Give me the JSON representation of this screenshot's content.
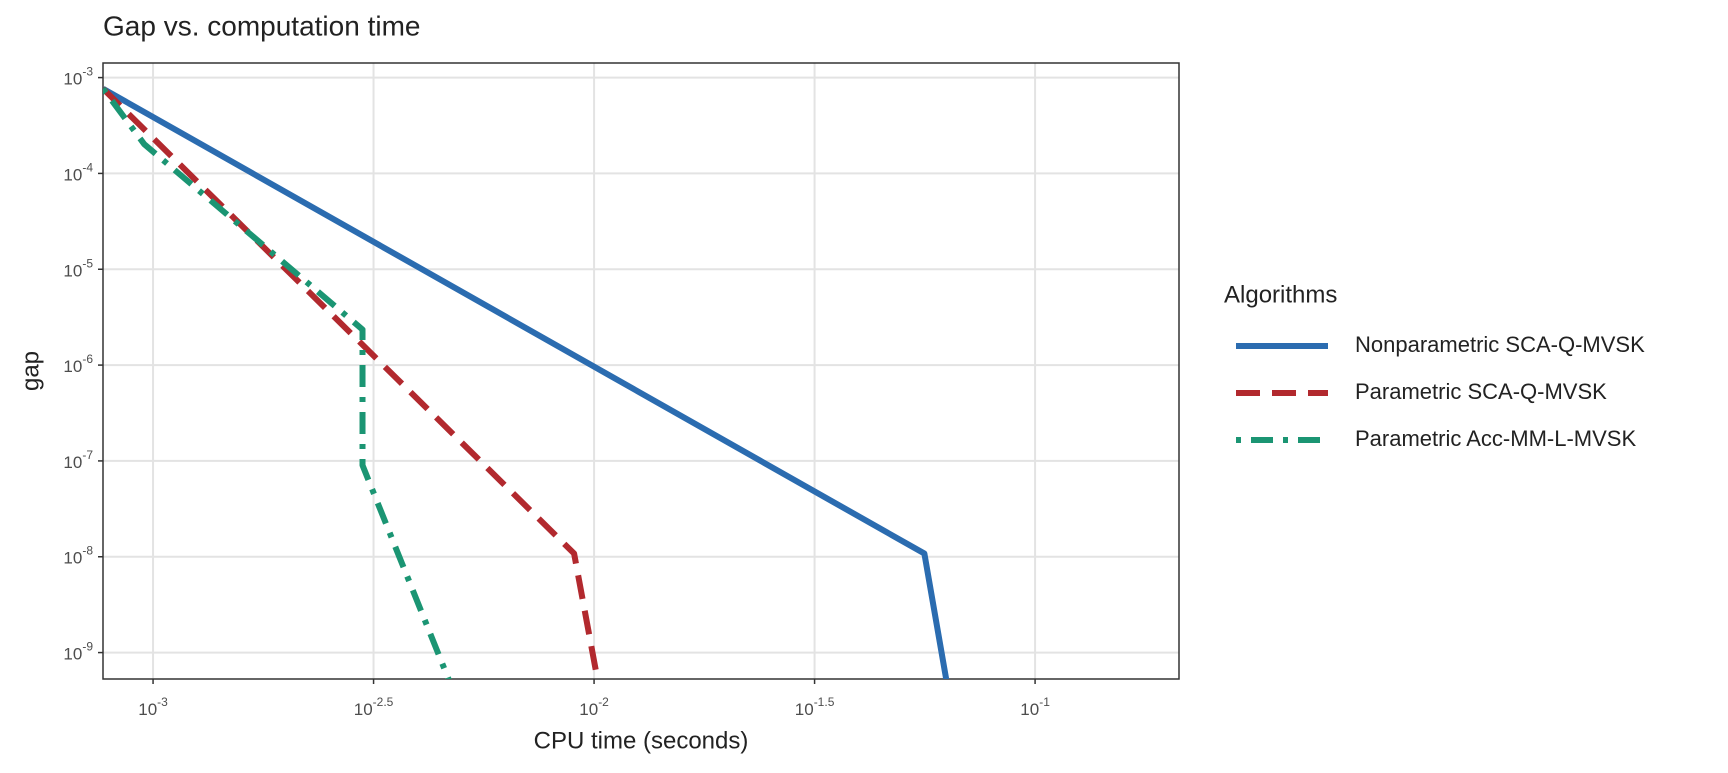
{
  "chart_data": {
    "type": "line",
    "title": "Gap vs. computation time",
    "x_label": "CPU time (seconds)",
    "y_label": "gap",
    "xscale": "log",
    "yscale": "log",
    "grid": true,
    "xlim": [
      0.00077,
      0.212
    ],
    "ylim": [
      5.3e-10,
      0.00142
    ],
    "xticks": [
      {
        "value": 0.001,
        "label": "10^-3"
      },
      {
        "value": 0.0031623,
        "label": "10^-2.5"
      },
      {
        "value": 0.01,
        "label": "10^-2"
      },
      {
        "value": 0.031623,
        "label": "10^-1.5"
      },
      {
        "value": 0.1,
        "label": "10^-1"
      }
    ],
    "yticks": [
      {
        "value": 0.001,
        "label": "10^-3"
      },
      {
        "value": 0.0001,
        "label": "10^-4"
      },
      {
        "value": 1e-05,
        "label": "10^-5"
      },
      {
        "value": 1e-06,
        "label": "10^-6"
      },
      {
        "value": 1e-07,
        "label": "10^-7"
      },
      {
        "value": 1e-08,
        "label": "10^-8"
      },
      {
        "value": 1e-09,
        "label": "10^-9"
      }
    ],
    "legend_title": "Algorithms",
    "legend_position": "right",
    "series": [
      {
        "name": "Nonparametric SCA-Q-MVSK",
        "color": "#2b6cb0",
        "dash": "solid",
        "x": [
          0.00077,
          0.0561,
          0.063
        ],
        "values": [
          0.000766,
          1.08e-08,
          5e-10
        ]
      },
      {
        "name": "Parametric SCA-Q-MVSK",
        "color": "#b2292e",
        "dash": "dashed",
        "x": [
          0.00077,
          0.00901,
          0.0102
        ],
        "values": [
          0.000766,
          1.08e-08,
          5e-10
        ]
      },
      {
        "name": "Parametric Acc-MM-L-MVSK",
        "color": "#1b9573",
        "dash": "dotdash",
        "x": [
          0.00077,
          0.000955,
          0.002985,
          0.002985,
          0.0047
        ],
        "values": [
          0.000766,
          0.000202,
          2.35e-06,
          9e-08,
          5e-10
        ]
      }
    ]
  }
}
